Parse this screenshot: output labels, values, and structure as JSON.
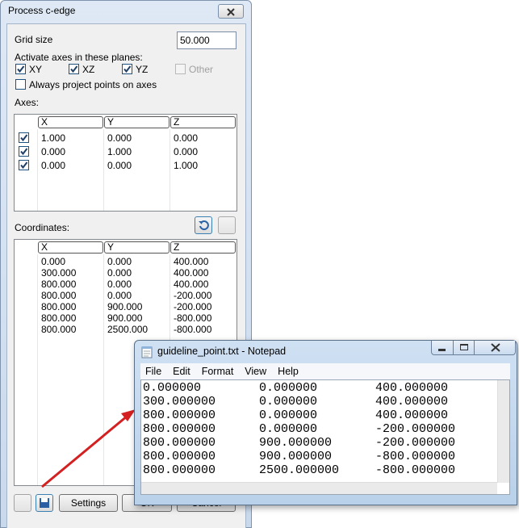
{
  "dialog": {
    "title": "Process c-edge",
    "grid_size_label": "Grid size",
    "grid_size_value": "50.000",
    "planes_label": "Activate axes in these planes:",
    "planes": [
      {
        "label": "XY",
        "checked": true,
        "enabled": true
      },
      {
        "label": "XZ",
        "checked": true,
        "enabled": true
      },
      {
        "label": "YZ",
        "checked": true,
        "enabled": true
      },
      {
        "label": "Other",
        "checked": false,
        "enabled": false
      }
    ],
    "always_project": {
      "label": "Always project points on axes",
      "checked": false
    },
    "axes_label": "Axes:",
    "axes_table": {
      "columns": [
        "X",
        "Y",
        "Z"
      ],
      "rows": [
        {
          "checked": true,
          "values": [
            "1.000",
            "0.000",
            "0.000"
          ]
        },
        {
          "checked": true,
          "values": [
            "0.000",
            "1.000",
            "0.000"
          ]
        },
        {
          "checked": true,
          "values": [
            "0.000",
            "0.000",
            "1.000"
          ]
        }
      ]
    },
    "coordinates_label": "Coordinates:",
    "coordinates_table": {
      "columns": [
        "X",
        "Y",
        "Z"
      ],
      "rows": [
        [
          "0.000",
          "0.000",
          "400.000"
        ],
        [
          "300.000",
          "0.000",
          "400.000"
        ],
        [
          "800.000",
          "0.000",
          "400.000"
        ],
        [
          "800.000",
          "0.000",
          "-200.000"
        ],
        [
          "800.000",
          "900.000",
          "-200.000"
        ],
        [
          "800.000",
          "900.000",
          "-800.000"
        ],
        [
          "800.000",
          "2500.000",
          "-800.000"
        ]
      ]
    },
    "buttons": [
      "Settings",
      "OK",
      "Cancel"
    ]
  },
  "notepad": {
    "title": "guideline_point.txt - Notepad",
    "menu": [
      "File",
      "Edit",
      "Format",
      "View",
      "Help"
    ],
    "lines": [
      [
        "0.000000",
        "0.000000",
        "400.000000"
      ],
      [
        "300.000000",
        "0.000000",
        "400.000000"
      ],
      [
        "800.000000",
        "0.000000",
        "400.000000"
      ],
      [
        "800.000000",
        "0.000000",
        "-200.000000"
      ],
      [
        "800.000000",
        "900.000000",
        "-200.000000"
      ],
      [
        "800.000000",
        "900.000000",
        "-800.000000"
      ],
      [
        "800.000000",
        "2500.000000",
        "-800.000000"
      ]
    ]
  }
}
